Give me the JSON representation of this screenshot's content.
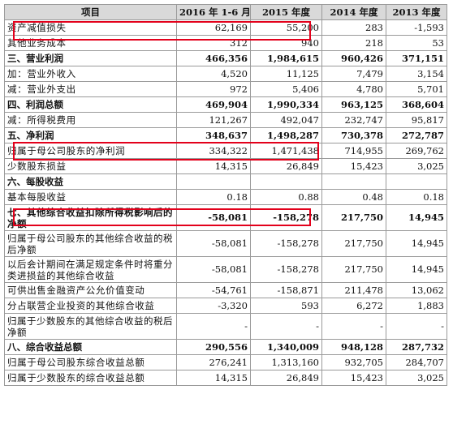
{
  "table": {
    "headers": [
      "项目",
      "2016 年 1-6 月",
      "2015 年度",
      "2014 年度",
      "2013 年度"
    ],
    "rows": [
      {
        "label": "资产减值损失",
        "values": [
          "62,169",
          "55,200",
          "283",
          "-1,593"
        ],
        "style": "normal"
      },
      {
        "label": "其他业务成本",
        "values": [
          "312",
          "940",
          "218",
          "53"
        ],
        "style": "normal"
      },
      {
        "label": "三、营业利润",
        "values": [
          "466,356",
          "1,984,615",
          "960,426",
          "371,151"
        ],
        "style": "bold"
      },
      {
        "label": "加：营业外收入",
        "values": [
          "4,520",
          "11,125",
          "7,479",
          "3,154"
        ],
        "style": "normal"
      },
      {
        "label": "减：营业外支出",
        "values": [
          "972",
          "5,406",
          "4,780",
          "5,701"
        ],
        "style": "normal"
      },
      {
        "label": "四、利润总额",
        "values": [
          "469,904",
          "1,990,334",
          "963,125",
          "368,604"
        ],
        "style": "bold"
      },
      {
        "label": "减：所得税费用",
        "values": [
          "121,267",
          "492,047",
          "232,747",
          "95,817"
        ],
        "style": "normal"
      },
      {
        "label": "五、净利润",
        "values": [
          "348,637",
          "1,498,287",
          "730,378",
          "272,787"
        ],
        "style": "bold"
      },
      {
        "label": "归属于母公司股东的净利润",
        "values": [
          "334,322",
          "1,471,438",
          "714,955",
          "269,762"
        ],
        "style": "normal"
      },
      {
        "label": "少数股东损益",
        "values": [
          "14,315",
          "26,849",
          "15,423",
          "3,025"
        ],
        "style": "normal"
      },
      {
        "label": "六、每股收益",
        "values": [
          "",
          "",
          "",
          ""
        ],
        "style": "bold"
      },
      {
        "label": "基本每股收益",
        "values": [
          "0.18",
          "0.88",
          "0.48",
          "0.18"
        ],
        "style": "normal"
      },
      {
        "label": "七、其他综合收益扣除所得税影响后的净额",
        "values": [
          "-58,081",
          "-158,278",
          "217,750",
          "14,945"
        ],
        "style": "bold-tall"
      },
      {
        "label": "归属于母公司股东的其他综合收益的税后净额",
        "values": [
          "-58,081",
          "-158,278",
          "217,750",
          "14,945"
        ],
        "style": "tall"
      },
      {
        "label": "以后会计期间在满足规定条件时将重分类进损益的其他综合收益",
        "values": [
          "-58,081",
          "-158,278",
          "217,750",
          "14,945"
        ],
        "style": "tall"
      },
      {
        "label": "可供出售金融资产公允价值变动",
        "values": [
          "-54,761",
          "-158,871",
          "211,478",
          "13,062"
        ],
        "style": "normal"
      },
      {
        "label": "分占联营企业投资的其他综合收益",
        "values": [
          "-3,320",
          "593",
          "6,272",
          "1,883"
        ],
        "style": "normal"
      },
      {
        "label": "归属于少数股东的其他综合收益的税后净额",
        "values": [
          "-",
          "-",
          "-",
          "-"
        ],
        "style": "tall"
      },
      {
        "label": "八、综合收益总额",
        "values": [
          "290,556",
          "1,340,009",
          "948,128",
          "287,732"
        ],
        "style": "bold"
      },
      {
        "label": "归属于母公司股东综合收益总额",
        "values": [
          "276,241",
          "1,313,160",
          "932,705",
          "284,707"
        ],
        "style": "normal"
      },
      {
        "label": "归属于少数股东的综合收益总额",
        "values": [
          "14,315",
          "26,849",
          "15,423",
          "3,025"
        ],
        "style": "normal"
      }
    ]
  },
  "highlight_color": "#e3001b"
}
